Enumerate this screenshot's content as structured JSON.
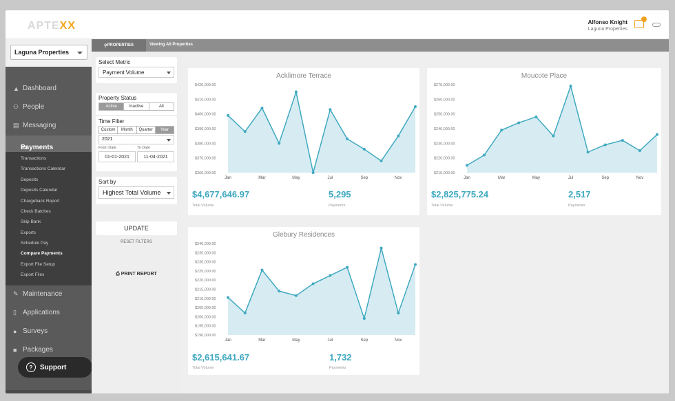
{
  "header": {
    "logo_main": "APTE",
    "logo_accent": "XX",
    "user_name": "Alfonso Knight",
    "user_sub": "Laguna Properties"
  },
  "sidebar": {
    "property_select": "Laguna Properties",
    "items": [
      {
        "label": "Dashboard",
        "icon": "dashboard-icon"
      },
      {
        "label": "People",
        "icon": "people-icon"
      },
      {
        "label": "Messaging",
        "icon": "messaging-icon"
      },
      {
        "label": "Payments",
        "icon": "payments-icon"
      },
      {
        "label": "Maintenance",
        "icon": "wrench-icon"
      },
      {
        "label": "Applications",
        "icon": "applications-icon"
      },
      {
        "label": "Surveys",
        "icon": "surveys-icon"
      },
      {
        "label": "Packages",
        "icon": "packages-icon"
      }
    ],
    "payments_sub": [
      "Transactions",
      "Transactions Calendar",
      "Deposits",
      "Deposits Calendar",
      "Chargeback Report",
      "Check Batches",
      "Skip Bank",
      "Exports",
      "Schedule Pay",
      "Compare Payments",
      "Export File Setup",
      "Export Files"
    ],
    "support_label": "Support"
  },
  "tabbar": {
    "active_tab": "PROPERTIES",
    "viewing": "Viewing All Properties"
  },
  "filters": {
    "metric_label": "Select Metric",
    "metric_value": "Payment Volume",
    "status_label": "Property Status",
    "status_options": [
      "Active",
      "Inactive",
      "All"
    ],
    "time_label": "Time Filter",
    "time_options": [
      "Custom",
      "Month",
      "Quarter",
      "Year"
    ],
    "year_value": "2021",
    "from_label": "From Date",
    "to_label": "To Date",
    "from_value": "01-01-2021",
    "to_value": "11-04-2021",
    "sort_label": "Sort by",
    "sort_value": "Highest Total Volume",
    "update_label": "UPDATE",
    "reset_label": "RESET FILTERS",
    "print_label": "PRINT REPORT"
  },
  "accent_color": "#3fa9c0",
  "chart_data": [
    {
      "type": "area",
      "title": "Acklimore Terrace",
      "categories": [
        "Jan",
        "Feb",
        "Mar",
        "Apr",
        "May",
        "Jun",
        "Jul",
        "Aug",
        "Sep",
        "Oct",
        "Nov",
        "Dec"
      ],
      "x_tick_labels": [
        "Jan",
        "Mar",
        "May",
        "Jul",
        "Sep",
        "Nov"
      ],
      "y_tick_labels": [
        "$360,000.00",
        "$370,000.00",
        "$380,000.00",
        "$390,000.00",
        "$400,000.00",
        "$410,000.00",
        "$420,000.00"
      ],
      "values": [
        399000,
        388000,
        404000,
        380000,
        415000,
        360000,
        403000,
        383000,
        376000,
        368000,
        385000,
        405000
      ],
      "ylim": [
        360000,
        420000
      ],
      "total_volume": "$4,677,646.97",
      "total_label": "Total Volume",
      "payments": "5,295",
      "payments_label": "Payments"
    },
    {
      "type": "area",
      "title": "Moucote Place",
      "categories": [
        "Jan",
        "Feb",
        "Mar",
        "Apr",
        "May",
        "Jun",
        "Jul",
        "Aug",
        "Sep",
        "Oct",
        "Nov",
        "Dec"
      ],
      "x_tick_labels": [
        "Jan",
        "Mar",
        "May",
        "Jul",
        "Sep",
        "Nov"
      ],
      "y_tick_labels": [
        "$210,000.00",
        "$220,000.00",
        "$230,000.00",
        "$240,000.00",
        "$250,000.00",
        "$260,000.00",
        "$270,000.00"
      ],
      "values": [
        215000,
        222000,
        239000,
        244000,
        248000,
        235000,
        269000,
        224000,
        229000,
        232000,
        225000,
        236000
      ],
      "ylim": [
        210000,
        270000
      ],
      "total_volume": "$2,825,775.24",
      "total_label": "Total Volume",
      "payments": "2,517",
      "payments_label": "Payments"
    },
    {
      "type": "area",
      "title": "Glebury Residences",
      "categories": [
        "Jan",
        "Feb",
        "Mar",
        "Apr",
        "May",
        "Jun",
        "Jul",
        "Aug",
        "Sep",
        "Oct",
        "Nov",
        "Dec"
      ],
      "x_tick_labels": [
        "Jan",
        "Mar",
        "May",
        "Jul",
        "Sep",
        "Nov"
      ],
      "y_tick_labels": [
        "$190,000.00",
        "$195,000.00",
        "$200,000.00",
        "$205,000.00",
        "$210,000.00",
        "$215,000.00",
        "$220,000.00",
        "$225,000.00",
        "$230,000.00",
        "$235,000.00",
        "$240,000.00"
      ],
      "values": [
        210500,
        202000,
        225500,
        214000,
        211500,
        218000,
        222500,
        227000,
        199000,
        237500,
        202000,
        228500
      ],
      "ylim": [
        190000,
        240000
      ],
      "total_volume": "$2,615,641.67",
      "total_label": "Total Volume",
      "payments": "1,732",
      "payments_label": "Payments"
    }
  ]
}
